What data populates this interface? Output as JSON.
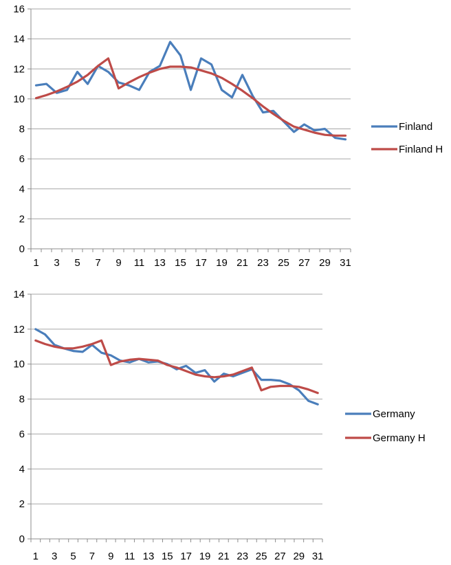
{
  "chart_data": [
    {
      "type": "line",
      "x": [
        1,
        2,
        3,
        4,
        5,
        6,
        7,
        8,
        9,
        10,
        11,
        12,
        13,
        14,
        15,
        16,
        17,
        18,
        19,
        20,
        21,
        22,
        23,
        24,
        25,
        26,
        27,
        28,
        29,
        30,
        31
      ],
      "x_tick_labels": [
        "1",
        "3",
        "5",
        "7",
        "9",
        "11",
        "13",
        "15",
        "17",
        "19",
        "21",
        "23",
        "25",
        "27",
        "29",
        "31"
      ],
      "y_tick_labels": [
        "0",
        "2",
        "4",
        "6",
        "8",
        "10",
        "12",
        "14",
        "16"
      ],
      "ylim": [
        0,
        16
      ],
      "grid": true,
      "legend": "right",
      "series": [
        {
          "name": "Finland",
          "color": "#4a7ebb",
          "values": [
            10.9,
            11.0,
            10.4,
            10.6,
            11.8,
            11.0,
            12.2,
            11.8,
            11.1,
            10.9,
            10.6,
            11.8,
            12.2,
            13.8,
            12.9,
            10.6,
            12.7,
            12.3,
            10.6,
            10.1,
            11.6,
            10.2,
            9.1,
            9.2,
            8.5,
            7.8,
            8.3,
            7.9,
            8.0,
            7.4,
            7.3
          ]
        },
        {
          "name": "Finland H",
          "color": "#be4b48",
          "values": [
            10.05,
            10.25,
            10.5,
            10.8,
            11.15,
            11.6,
            12.2,
            12.7,
            10.7,
            11.1,
            11.45,
            11.75,
            12.0,
            12.15,
            12.15,
            12.1,
            11.9,
            11.7,
            11.4,
            11.0,
            10.55,
            10.05,
            9.5,
            9.0,
            8.55,
            8.15,
            7.95,
            7.75,
            7.6,
            7.55,
            7.55
          ]
        }
      ]
    },
    {
      "type": "line",
      "x": [
        1,
        2,
        3,
        4,
        5,
        6,
        7,
        8,
        9,
        10,
        11,
        12,
        13,
        14,
        15,
        16,
        17,
        18,
        19,
        20,
        21,
        22,
        23,
        24,
        25,
        26,
        27,
        28,
        29,
        30,
        31
      ],
      "x_tick_labels": [
        "1",
        "3",
        "5",
        "7",
        "9",
        "11",
        "13",
        "15",
        "17",
        "19",
        "21",
        "23",
        "25",
        "27",
        "29",
        "31"
      ],
      "y_tick_labels": [
        "0",
        "2",
        "4",
        "6",
        "8",
        "10",
        "12",
        "14"
      ],
      "ylim": [
        0,
        14
      ],
      "grid": true,
      "legend": "right",
      "series": [
        {
          "name": "Germany",
          "color": "#4a7ebb",
          "values": [
            12.0,
            11.7,
            11.1,
            10.9,
            10.75,
            10.7,
            11.1,
            10.65,
            10.5,
            10.2,
            10.1,
            10.3,
            10.1,
            10.15,
            10.0,
            9.7,
            9.9,
            9.5,
            9.65,
            9.0,
            9.45,
            9.3,
            9.5,
            9.7,
            9.1,
            9.1,
            9.05,
            8.85,
            8.5,
            7.9,
            7.7
          ]
        },
        {
          "name": "Germany H",
          "color": "#be4b48",
          "values": [
            11.35,
            11.15,
            11.0,
            10.9,
            10.9,
            11.0,
            11.15,
            11.35,
            9.95,
            10.15,
            10.25,
            10.3,
            10.25,
            10.2,
            9.95,
            9.8,
            9.6,
            9.4,
            9.3,
            9.25,
            9.3,
            9.4,
            9.6,
            9.8,
            8.5,
            8.7,
            8.75,
            8.75,
            8.7,
            8.55,
            8.35
          ]
        }
      ]
    }
  ]
}
